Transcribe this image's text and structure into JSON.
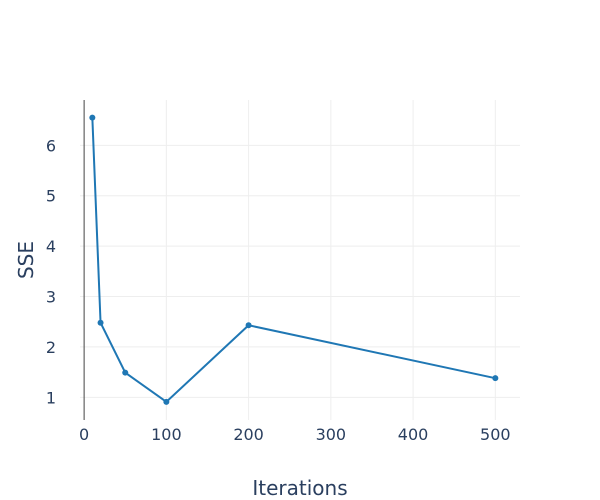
{
  "chart_data": {
    "type": "line",
    "title": "",
    "xlabel": "Iterations",
    "ylabel": "SSE",
    "xlim": [
      -5,
      530
    ],
    "ylim": [
      0.55,
      6.9
    ],
    "xticks": [
      0,
      100,
      200,
      300,
      400,
      500
    ],
    "yticks": [
      1,
      2,
      3,
      4,
      5,
      6
    ],
    "grid": true,
    "legend": "none",
    "series": [
      {
        "color": "#1f77b4",
        "x": [
          10,
          20,
          50,
          100,
          200,
          500
        ],
        "y": [
          6.55,
          2.48,
          1.49,
          0.91,
          2.43,
          1.38
        ]
      }
    ]
  }
}
